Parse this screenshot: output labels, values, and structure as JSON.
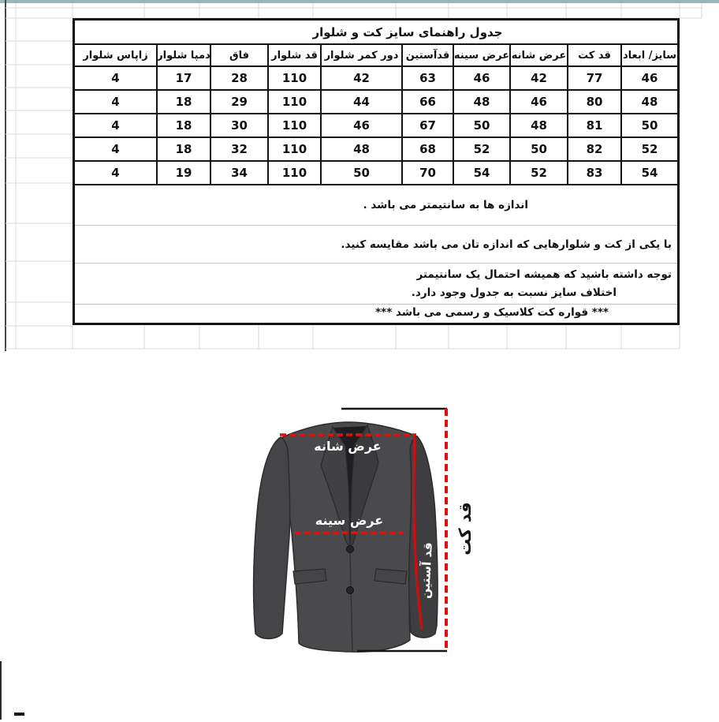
{
  "meta": {
    "top_bar_color": "#9ab7b7",
    "grid_line_color": "#d9d9d9",
    "accent_red": "#dd1111",
    "jacket_color": "#48484b"
  },
  "size_table": {
    "title": "جدول راهنمای سایز کت و شلوار",
    "columns": [
      "سایز/ ابعاد",
      "قد کت",
      "عرض شانه",
      "عرض سینه",
      "قدآستین",
      "دور کمر شلوار",
      "قد شلوار",
      "فاق",
      "دمپا شلوار",
      "زاپاس شلوار"
    ],
    "rows": [
      [
        "46",
        "77",
        "42",
        "46",
        "63",
        "42",
        "110",
        "28",
        "17",
        "4"
      ],
      [
        "48",
        "80",
        "46",
        "48",
        "66",
        "44",
        "110",
        "29",
        "18",
        "4"
      ],
      [
        "50",
        "81",
        "48",
        "50",
        "67",
        "46",
        "110",
        "30",
        "18",
        "4"
      ],
      [
        "52",
        "82",
        "50",
        "52",
        "68",
        "48",
        "110",
        "32",
        "18",
        "4"
      ],
      [
        "54",
        "83",
        "52",
        "54",
        "70",
        "50",
        "110",
        "34",
        "19",
        "4"
      ]
    ],
    "notes": {
      "note1": "اندازه ها به سانتیمتر می باشد .",
      "note2": "با یکی از کت و شلوارهایی که اندازه تان می باشد مقایسه کنید.",
      "note3_line1": "توجه داشته باشید که همیشه احتمال یک سانتیمتر",
      "note3_line2": "اختلاف سایز نسبت به جدول وجود دارد.",
      "note4": "*** قواره کت کلاسیک و رسمی می باشد ***"
    }
  },
  "jacket_diagram": {
    "labels": {
      "shoulder_width": "عرض شانه",
      "chest_width": "عرض سینه",
      "sleeve_length": "قد آستین",
      "jacket_length": "قد کت"
    }
  }
}
